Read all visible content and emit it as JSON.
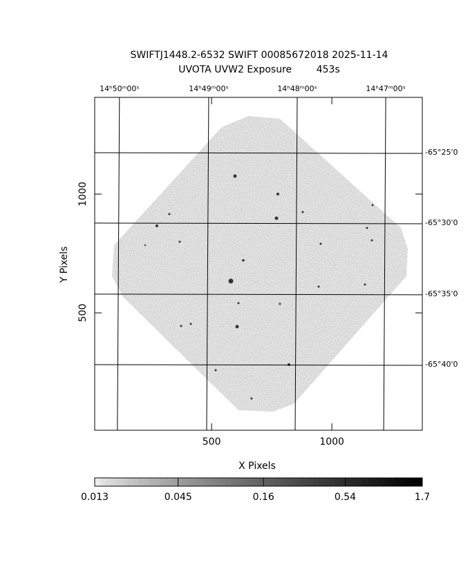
{
  "chart_data": {
    "type": "image",
    "title": "SWIFTJ1448.2-6532 SWIFT 00085672018 2025-11-14",
    "subtitle": "UVOTA UVW2 Exposure        453s",
    "xlabel": "X Pixels",
    "ylabel": "Y Pixels",
    "xlim": [
      14,
      1376
    ],
    "ylim": [
      6,
      1407
    ],
    "xticks": [
      500,
      1000
    ],
    "yticks": [
      500,
      1000
    ],
    "x2ticks": [
      {
        "value": 117,
        "label": "14ʰ50ᵐ00ˢ"
      },
      {
        "value": 488,
        "label": "14ʰ49ᵐ00ˢ"
      },
      {
        "value": 856,
        "label": "14ʰ48ᵐ00ˢ"
      },
      {
        "value": 1224,
        "label": "14ʰ47ᵐ00ˢ"
      }
    ],
    "y2ticks": [
      {
        "value": 1174,
        "label": "-65°25'0"
      },
      {
        "value": 878,
        "label": "-65°30'0"
      },
      {
        "value": 579,
        "label": "-65°35'0"
      },
      {
        "value": 282,
        "label": "-65°40'0"
      }
    ],
    "grid": true,
    "colorbar": {
      "lim": [
        0.013,
        1.7
      ],
      "log": true,
      "ticks": [
        0.013,
        0.045,
        0.16,
        0.54,
        1.7
      ]
    }
  }
}
